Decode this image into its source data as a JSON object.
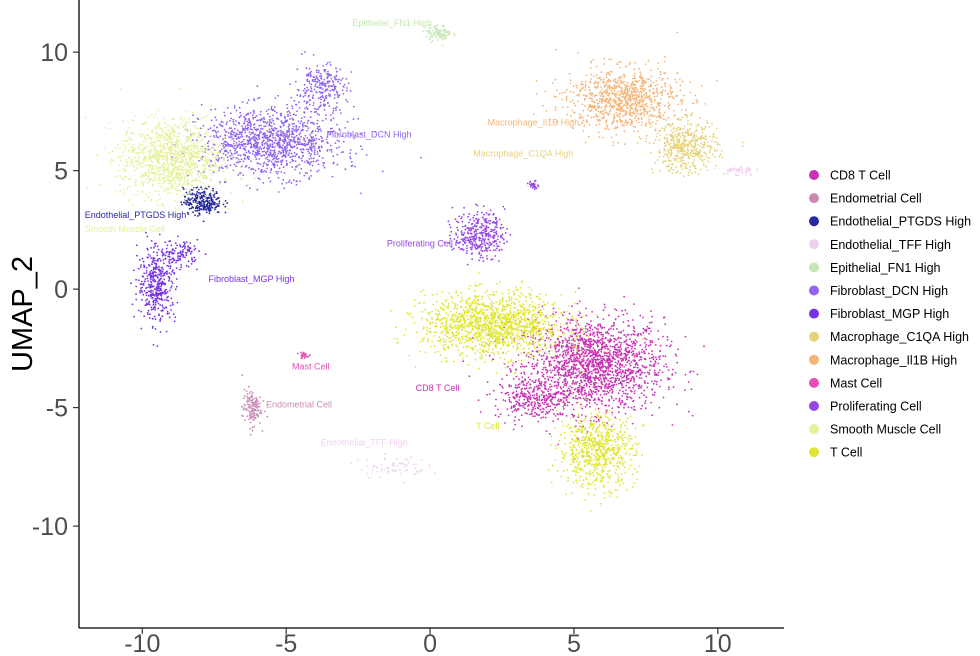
{
  "chart_data": {
    "type": "scatter",
    "title": "",
    "xlabel": "",
    "ylabel": "UMAP_2",
    "xlim": [
      -12.2,
      12.3
    ],
    "ylim": [
      -14.3,
      12.2
    ],
    "xticks": [
      -10,
      -5,
      0,
      5,
      10
    ],
    "yticks": [
      -10,
      -5,
      0,
      5,
      10
    ],
    "xtick_labels": [
      "-10",
      "-5",
      "0",
      "5",
      "10"
    ],
    "ytick_labels": [
      "-10",
      "-5",
      "0",
      "5",
      "10"
    ],
    "grid": false,
    "legend_position": "right",
    "series": [
      {
        "name": "CD8 T Cell",
        "color": "#C832B4",
        "label": "CD8 T Cell",
        "label_pos": [
          -0.5,
          -4.3
        ],
        "clusters": [
          {
            "cx": 5.7,
            "cy": -3.2,
            "rx": 2.2,
            "ry": 1.8,
            "n": 1800
          },
          {
            "cx": 3.6,
            "cy": -4.6,
            "rx": 1.2,
            "ry": 0.8,
            "n": 300
          }
        ]
      },
      {
        "name": "Endometrial Cell",
        "color": "#C88CB4",
        "label": "Endometrial Cell",
        "label_pos": [
          -5.7,
          -5.0
        ],
        "clusters": [
          {
            "cx": -6.2,
            "cy": -5.0,
            "rx": 0.3,
            "ry": 0.7,
            "n": 140
          }
        ]
      },
      {
        "name": "Endothelial_PTGDS High",
        "color": "#2828A0",
        "label": "Endothelial_PTGDS High",
        "label_pos": [
          -12.0,
          3.0
        ],
        "clusters": [
          {
            "cx": -7.9,
            "cy": 3.7,
            "rx": 0.6,
            "ry": 0.5,
            "n": 260
          }
        ]
      },
      {
        "name": "Endothelial_TFF High",
        "color": "#F0D2EE",
        "label": "Endothelial_TFF High",
        "label_pos": [
          -3.8,
          -6.6
        ],
        "clusters": [
          {
            "cx": -1.3,
            "cy": -7.5,
            "rx": 1.1,
            "ry": 0.4,
            "n": 70
          },
          {
            "cx": 10.7,
            "cy": 5.0,
            "rx": 0.5,
            "ry": 0.2,
            "n": 50
          }
        ]
      },
      {
        "name": "Epithelial_FN1 High",
        "color": "#C8E6B4",
        "label": "Epithelial_FN1 High",
        "label_pos": [
          -2.7,
          11.1
        ],
        "clusters": [
          {
            "cx": 0.3,
            "cy": 10.8,
            "rx": 0.4,
            "ry": 0.3,
            "n": 90
          }
        ]
      },
      {
        "name": "Fibroblast_DCN High",
        "color": "#9164F0",
        "label": "Fibroblast_DCN High",
        "label_pos": [
          -3.6,
          6.4
        ],
        "clusters": [
          {
            "cx": -5.5,
            "cy": 6.2,
            "rx": 2.2,
            "ry": 1.3,
            "n": 1200
          },
          {
            "cx": -3.8,
            "cy": 8.5,
            "rx": 0.8,
            "ry": 0.9,
            "n": 250
          }
        ]
      },
      {
        "name": "Fibroblast_MGP High",
        "color": "#7832E6",
        "label": "Fibroblast_MGP High",
        "label_pos": [
          -7.7,
          0.3
        ],
        "clusters": [
          {
            "cx": -9.5,
            "cy": 0.2,
            "rx": 0.6,
            "ry": 1.4,
            "n": 400
          },
          {
            "cx": -8.7,
            "cy": 1.5,
            "rx": 0.6,
            "ry": 0.5,
            "n": 120
          }
        ]
      },
      {
        "name": "Macrophage_C1QA High",
        "color": "#E6D278",
        "label": "Macrophage_C1QA High",
        "label_pos": [
          1.5,
          5.6
        ],
        "clusters": [
          {
            "cx": 8.9,
            "cy": 6.0,
            "rx": 1.0,
            "ry": 1.0,
            "n": 450
          }
        ]
      },
      {
        "name": "Macrophage_Il1B High",
        "color": "#F5B478",
        "label": "Macrophage_Il1B High",
        "label_pos": [
          2.0,
          6.9
        ],
        "clusters": [
          {
            "cx": 6.7,
            "cy": 8.0,
            "rx": 1.8,
            "ry": 1.2,
            "n": 900
          }
        ]
      },
      {
        "name": "Mast Cell",
        "color": "#E650B4",
        "label": "Mast Cell",
        "label_pos": [
          -4.8,
          -3.4
        ],
        "clusters": [
          {
            "cx": -4.4,
            "cy": -2.8,
            "rx": 0.15,
            "ry": 0.12,
            "n": 25
          }
        ]
      },
      {
        "name": "Proliferating Cell",
        "color": "#9646E6",
        "label": "Proliferating Cell",
        "label_pos": [
          -1.5,
          1.8
        ],
        "clusters": [
          {
            "cx": 1.7,
            "cy": 2.3,
            "rx": 0.8,
            "ry": 0.9,
            "n": 350
          },
          {
            "cx": 3.6,
            "cy": 4.4,
            "rx": 0.15,
            "ry": 0.15,
            "n": 30
          }
        ]
      },
      {
        "name": "Smooth Muscle Cell",
        "color": "#E6F09B",
        "label": "Smooth Muscle Cell",
        "label_pos": [
          -12.0,
          2.4
        ],
        "clusters": [
          {
            "cx": -9.0,
            "cy": 5.5,
            "rx": 1.6,
            "ry": 1.5,
            "n": 1100
          }
        ]
      },
      {
        "name": "T Cell",
        "color": "#E1E632",
        "label": "T Cell",
        "label_pos": [
          1.6,
          -5.9
        ],
        "clusters": [
          {
            "cx": 2.2,
            "cy": -1.5,
            "rx": 2.2,
            "ry": 1.2,
            "n": 1400
          },
          {
            "cx": 5.8,
            "cy": -6.8,
            "rx": 1.2,
            "ry": 1.4,
            "n": 700
          }
        ]
      }
    ]
  }
}
